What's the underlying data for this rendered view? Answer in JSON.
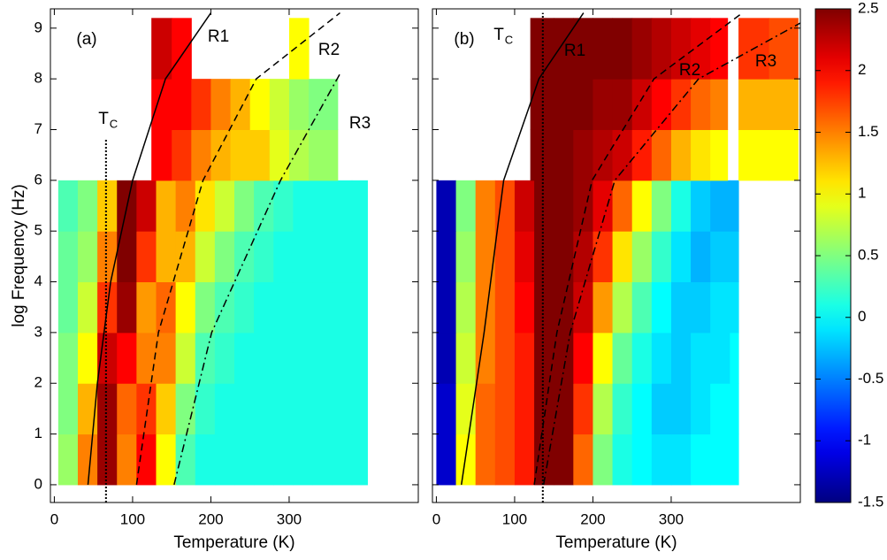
{
  "chart_data": [
    {
      "type": "heatmap",
      "xlabel": "Temperature (K)",
      "ylabel": "log Frequency (Hz)",
      "xlim": [
        -5,
        465
      ],
      "ylim": [
        -0.35,
        9.38
      ],
      "xticks": [
        0,
        100,
        200,
        300
      ],
      "yticks": [
        0,
        1,
        2,
        3,
        4,
        5,
        6,
        7,
        8,
        9
      ],
      "show_ytick_labels": true,
      "regions": [
        {
          "x": [
            5,
            30,
            55,
            80,
            105,
            130,
            155,
            180,
            205,
            230,
            255,
            280,
            305,
            330,
            355,
            380,
            400
          ],
          "y": [
            0,
            1,
            2,
            3,
            4,
            5,
            6
          ],
          "values": [
            [
              0.6,
              1.5,
              2.4,
              1.5,
              2.0,
              1.0,
              0.3,
              0.1,
              0.1,
              0.1,
              0.1,
              0.1,
              0.1,
              0.1,
              0.1,
              0.1
            ],
            [
              0.5,
              1.3,
              2.4,
              1.6,
              1.8,
              1.2,
              0.5,
              0.2,
              0.1,
              0.1,
              0.1,
              0.1,
              0.1,
              0.1,
              0.1,
              0.1
            ],
            [
              0.5,
              1.0,
              2.2,
              2.0,
              1.5,
              1.5,
              0.8,
              0.3,
              0.2,
              0.1,
              0.1,
              0.1,
              0.1,
              0.1,
              0.1,
              0.1
            ],
            [
              0.4,
              0.8,
              1.8,
              2.4,
              1.4,
              1.6,
              1.0,
              0.5,
              0.3,
              0.2,
              0.1,
              0.1,
              0.1,
              0.1,
              0.1,
              0.1
            ],
            [
              0.4,
              0.6,
              1.5,
              2.5,
              1.8,
              1.3,
              1.3,
              0.8,
              0.5,
              0.3,
              0.2,
              0.1,
              0.1,
              0.1,
              0.1,
              0.1
            ],
            [
              0.3,
              0.5,
              1.2,
              2.5,
              2.2,
              1.3,
              1.5,
              1.1,
              0.8,
              0.5,
              0.3,
              0.2,
              0.1,
              0.1,
              0.1,
              0.1
            ]
          ]
        },
        {
          "x": [
            124,
            150,
            175,
            200,
            225,
            250,
            275,
            300,
            325,
            362
          ],
          "y": [
            6,
            7,
            8,
            9.2
          ],
          "values": [
            [
              2.0,
              1.8,
              1.5,
              1.3,
              1.2,
              1.2,
              0.9,
              0.7,
              0.6
            ],
            [
              2.0,
              2.0,
              1.8,
              1.5,
              1.3,
              1.0,
              0.8,
              0.6,
              0.5
            ],
            [
              2.2,
              2.0,
              null,
              null,
              null,
              null,
              null,
              1.0,
              null
            ]
          ]
        }
      ],
      "lines": [
        {
          "style": "solid",
          "x": [
            43,
            55,
            72,
            100,
            142,
            200
          ],
          "y": [
            0,
            2,
            4,
            6,
            8,
            9.3
          ]
        },
        {
          "style": "dashed",
          "x": [
            105,
            133,
            190,
            258,
            365
          ],
          "y": [
            0,
            3,
            6,
            8,
            9.3
          ]
        },
        {
          "style": "dashdot",
          "x": [
            153,
            201,
            289,
            365
          ],
          "y": [
            0,
            3,
            6,
            8.1
          ]
        }
      ],
      "tc_line": {
        "x": 66,
        "y": 6.8
      },
      "annotations": [
        {
          "text": "(a)",
          "color": "#000000"
        },
        {
          "text": "T",
          "sub": "C",
          "color": "#000000"
        },
        {
          "text": "R1",
          "color": "#000000"
        },
        {
          "text": "R2",
          "color": "#000000"
        },
        {
          "text": "R3",
          "color": "#000000"
        }
      ]
    },
    {
      "type": "heatmap",
      "xlabel": "Temperature (K)",
      "xlim": [
        -5,
        465
      ],
      "ylim": [
        -0.35,
        9.38
      ],
      "xticks": [
        0,
        100,
        200,
        300
      ],
      "yticks": [
        0,
        1,
        2,
        3,
        4,
        5,
        6,
        7,
        8,
        9
      ],
      "show_ytick_labels": false,
      "regions": [
        {
          "x": [
            0,
            25,
            50,
            75,
            100,
            125,
            150,
            175,
            200,
            225,
            250,
            275,
            300,
            325,
            350,
            375,
            386
          ],
          "y": [
            0,
            1,
            2,
            3,
            4,
            5,
            6
          ],
          "values": [
            [
              -1.2,
              1.0,
              1.6,
              1.7,
              1.9,
              2.5,
              2.5,
              1.6,
              0.5,
              0.1,
              0,
              -0.1,
              -0.1,
              0,
              0,
              0
            ],
            [
              -1.2,
              0.9,
              1.6,
              1.7,
              1.9,
              2.5,
              2.5,
              1.8,
              0.7,
              0.2,
              0,
              -0.2,
              -0.2,
              -0.1,
              0,
              0
            ],
            [
              -1.3,
              0.8,
              1.5,
              1.7,
              1.9,
              2.5,
              2.5,
              2.0,
              1.0,
              0.4,
              0.1,
              -0.1,
              -0.2,
              -0.1,
              -0.1,
              0
            ],
            [
              -1.3,
              0.7,
              1.5,
              1.7,
              2.0,
              2.5,
              2.5,
              2.2,
              1.4,
              0.7,
              0.3,
              0,
              -0.2,
              -0.2,
              -0.1,
              -0.1
            ],
            [
              -1.3,
              0.6,
              1.5,
              1.7,
              2.1,
              2.5,
              2.5,
              2.3,
              1.8,
              1.1,
              0.6,
              0.2,
              -0.1,
              -0.3,
              -0.2,
              -0.2
            ],
            [
              -1.3,
              0.5,
              1.5,
              1.7,
              2.2,
              2.5,
              2.5,
              2.4,
              2.1,
              1.6,
              1.0,
              0.5,
              0.1,
              -0.2,
              -0.3,
              -0.3
            ]
          ]
        },
        {
          "x": [
            120,
            150,
            175,
            200,
            225,
            250,
            275,
            300,
            325,
            350,
            372
          ],
          "y": [
            6,
            7,
            8,
            9.2
          ],
          "values": [
            [
              2.5,
              2.5,
              2.4,
              2.3,
              2.2,
              1.9,
              1.6,
              1.3,
              1.1,
              1.0
            ],
            [
              2.5,
              2.5,
              2.5,
              2.4,
              2.4,
              2.2,
              2.0,
              1.8,
              1.6,
              1.5
            ],
            [
              2.5,
              2.5,
              2.5,
              2.5,
              2.5,
              2.4,
              2.3,
              2.2,
              2.1,
              2.0
            ]
          ]
        },
        {
          "x": [
            386,
            425,
            462
          ],
          "y": [
            6,
            7,
            8,
            9.2
          ],
          "values": [
            [
              1.0,
              1.0
            ],
            [
              1.3,
              1.3
            ],
            [
              1.8,
              1.7
            ]
          ]
        }
      ],
      "lines": [
        {
          "style": "solid",
          "x": [
            32,
            61,
            86,
            131,
            188
          ],
          "y": [
            0,
            3,
            6,
            8,
            9.3
          ]
        },
        {
          "style": "dashed",
          "x": [
            125,
            154,
            199,
            278,
            391
          ],
          "y": [
            0,
            3,
            6,
            8,
            9.3
          ]
        },
        {
          "style": "dashdot",
          "x": [
            137,
            171,
            228,
            335,
            465
          ],
          "y": [
            0,
            3,
            6,
            8,
            9.1
          ]
        }
      ],
      "tc_line": {
        "x": 136,
        "y": 9.3
      },
      "annotations": [
        {
          "text": "(b)",
          "color": "#000000"
        },
        {
          "text": "T",
          "sub": "C",
          "color": "#000000"
        },
        {
          "text": "R1",
          "color": "#ffffff"
        },
        {
          "text": "R2",
          "color": "#ffffff"
        },
        {
          "text": "R3",
          "color": "#ffffff"
        }
      ]
    }
  ],
  "colorbar": {
    "colormap": "jet",
    "clim": [
      -1.5,
      2.5
    ],
    "ticks": [
      -1.5,
      -1,
      -0.5,
      0,
      0.5,
      1,
      1.5,
      2,
      2.5
    ]
  }
}
